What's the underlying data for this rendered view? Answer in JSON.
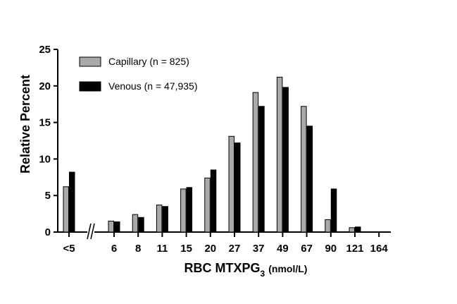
{
  "chart_data": {
    "type": "bar",
    "title": "",
    "ylabel": "Relative Percent",
    "xlabel": {
      "main": "RBC MTXPG",
      "subscript": "3",
      "unit": "(nmol/L)"
    },
    "ylim": [
      0,
      25
    ],
    "yticks": [
      "0",
      "5",
      "10",
      "15",
      "20",
      "25"
    ],
    "categories": [
      "<5",
      "6",
      "8",
      "11",
      "15",
      "20",
      "27",
      "37",
      "49",
      "67",
      "90",
      "121",
      "164"
    ],
    "axis_break_after_category": 0,
    "legend_position": "top-left",
    "series": [
      {
        "name": "Capillary (n = 825)",
        "color": "#a9a9a9",
        "values": [
          6.2,
          1.5,
          2.4,
          3.7,
          5.9,
          7.4,
          13.1,
          19.1,
          21.2,
          17.2,
          1.7,
          0.6,
          0
        ]
      },
      {
        "name": "Venous (n = 47,935)",
        "color": "#000000",
        "values": [
          8.2,
          1.4,
          2.0,
          3.5,
          6.1,
          8.5,
          12.2,
          17.2,
          19.8,
          14.5,
          5.9,
          0.7,
          0
        ]
      }
    ]
  }
}
